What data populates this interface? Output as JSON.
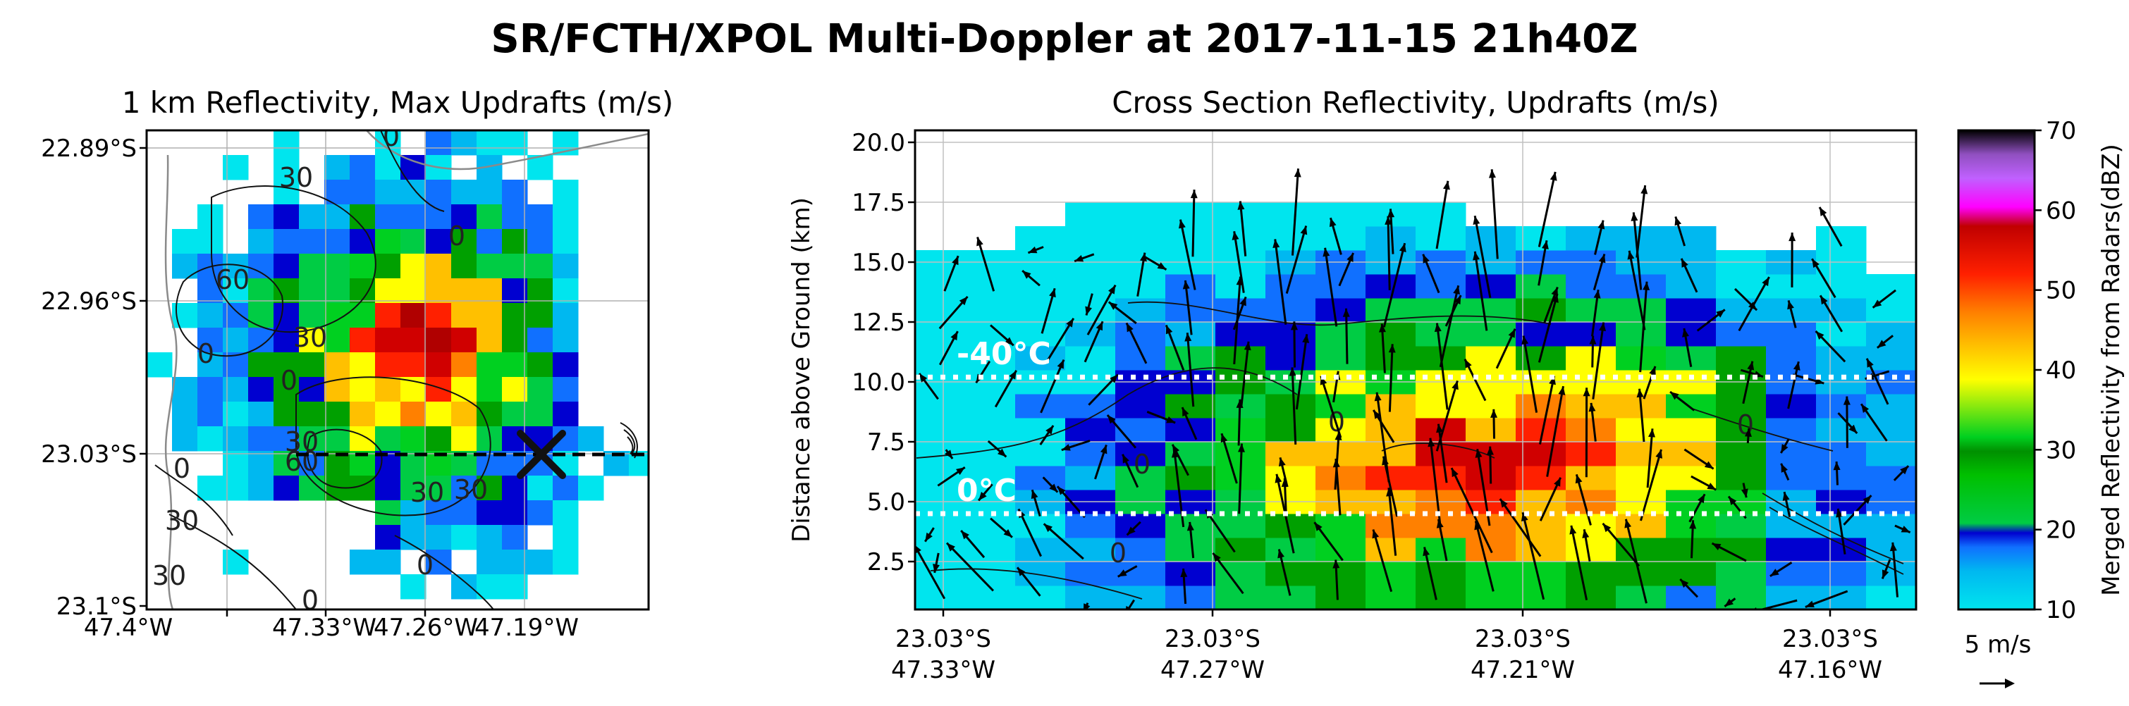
{
  "figure": {
    "title": "SR/FCTH/XPOL Multi-Doppler at 2017-11-15 21h40Z"
  },
  "chart_data": [
    {
      "id": "left",
      "type": "heatmap",
      "title": "1 km Reflectivity, Max Updrafts (m/s)",
      "xlabel": "",
      "ylabel": "",
      "x_ticks": [
        "47.4°W",
        "47.33°W",
        "47.26°W",
        "47.19°W"
      ],
      "y_ticks": [
        "22.89°S",
        "22.96°S",
        "23.03°S",
        "23.1°S"
      ],
      "contour_labels": [
        "0",
        "0",
        "0",
        "0",
        "0",
        "30",
        "30",
        "30",
        "30",
        "30",
        "30",
        "60",
        "60",
        "30"
      ],
      "grid": true,
      "marker": "X at cross-section center",
      "cross_section_line": "dashed, along 23.03°S"
    },
    {
      "id": "right",
      "type": "heatmap",
      "title": "Cross Section Reflectivity, Updrafts (m/s)",
      "xlabel": "",
      "ylabel": "Distance above Ground (km)",
      "ylim": [
        0.5,
        20.5
      ],
      "y_ticks": [
        2.5,
        5.0,
        7.5,
        10.0,
        12.5,
        15.0,
        17.5,
        20.0
      ],
      "x_ticks": [
        {
          "lat": "23.03°S",
          "lon": "47.33°W"
        },
        {
          "lat": "23.03°S",
          "lon": "47.27°W"
        },
        {
          "lat": "23.03°S",
          "lon": "47.21°W"
        },
        {
          "lat": "23.03°S",
          "lon": "47.16°W"
        }
      ],
      "isotherms": [
        {
          "label": "-40°C",
          "height_km": 10.2
        },
        {
          "label": "0°C",
          "height_km": 4.5
        }
      ],
      "contour_labels": [
        "0",
        "0",
        "0",
        "0"
      ],
      "quiver_key": "5 m/s",
      "grid": true
    }
  ],
  "colorbar": {
    "label": "Merged Reflectivity from Radars(dBZ)",
    "range": [
      10,
      70
    ],
    "ticks": [
      10,
      20,
      30,
      40,
      50,
      60,
      70
    ],
    "colormap_stops": [
      "#00e5ee",
      "#00b8f0",
      "#1070ff",
      "#0000d0",
      "#00cc44",
      "#00a000",
      "#00d020",
      "#ffff00",
      "#ffc000",
      "#ff8000",
      "#ff2000",
      "#d00000",
      "#b00000",
      "#ff00ff",
      "#c060ff",
      "#9050c0",
      "#000000"
    ]
  }
}
